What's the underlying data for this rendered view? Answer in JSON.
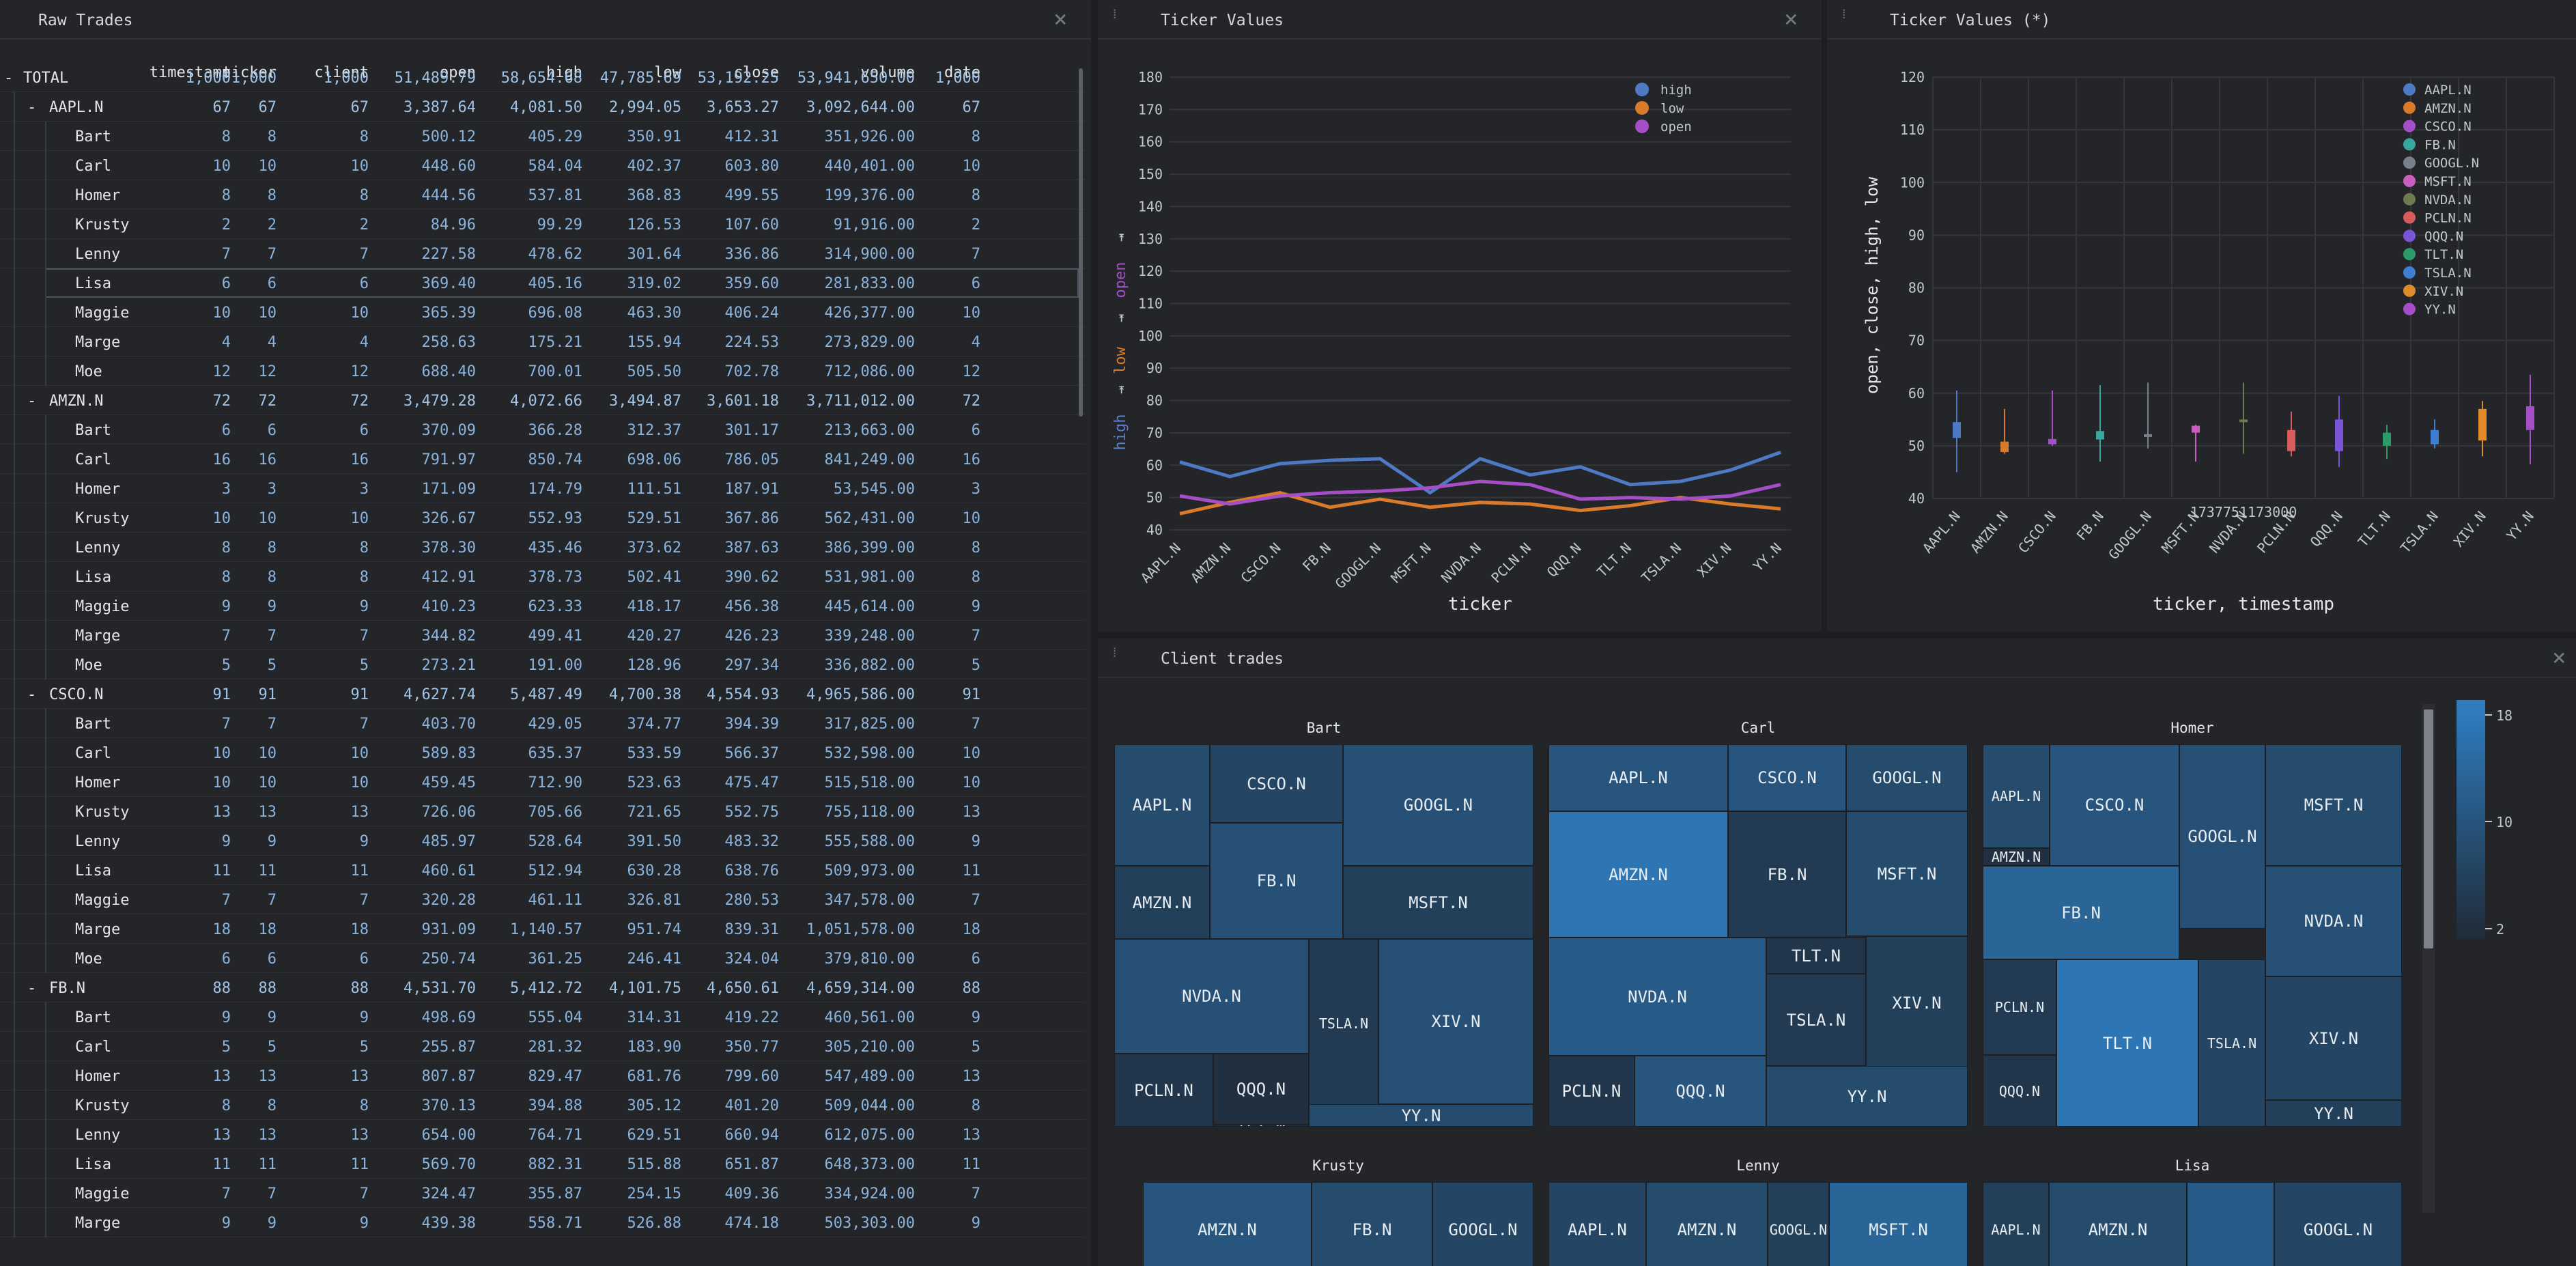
{
  "grid": {
    "title": "Raw Trades",
    "columns": [
      "timestamp",
      "ticker",
      "client",
      "open",
      "high",
      "low",
      "close",
      "volume",
      "date"
    ],
    "rows": [
      {
        "label": "TOTAL",
        "level": 0,
        "toggle": "-",
        "cells": [
          "1,000",
          "1,000",
          "1,000",
          "51,489.79",
          "58,654.68",
          "47,785.69",
          "53,192.25",
          "53,941,650.00",
          "1,000"
        ]
      },
      {
        "label": "AAPL.N",
        "level": 1,
        "toggle": "-",
        "cells": [
          "67",
          "67",
          "67",
          "3,387.64",
          "4,081.50",
          "2,994.05",
          "3,653.27",
          "3,092,644.00",
          "67"
        ]
      },
      {
        "label": "Bart",
        "level": 2,
        "cells": [
          "8",
          "8",
          "8",
          "500.12",
          "405.29",
          "350.91",
          "412.31",
          "351,926.00",
          "8"
        ]
      },
      {
        "label": "Carl",
        "level": 2,
        "cells": [
          "10",
          "10",
          "10",
          "448.60",
          "584.04",
          "402.37",
          "603.80",
          "440,401.00",
          "10"
        ]
      },
      {
        "label": "Homer",
        "level": 2,
        "cells": [
          "8",
          "8",
          "8",
          "444.56",
          "537.81",
          "368.83",
          "499.55",
          "199,376.00",
          "8"
        ]
      },
      {
        "label": "Krusty",
        "level": 2,
        "cells": [
          "2",
          "2",
          "2",
          "84.96",
          "99.29",
          "126.53",
          "107.60",
          "91,916.00",
          "2"
        ]
      },
      {
        "label": "Lenny",
        "level": 2,
        "cells": [
          "7",
          "7",
          "7",
          "227.58",
          "478.62",
          "301.64",
          "336.86",
          "314,900.00",
          "7"
        ]
      },
      {
        "label": "Lisa",
        "level": 2,
        "sel": true,
        "cells": [
          "6",
          "6",
          "6",
          "369.40",
          "405.16",
          "319.02",
          "359.60",
          "281,833.00",
          "6"
        ]
      },
      {
        "label": "Maggie",
        "level": 2,
        "cells": [
          "10",
          "10",
          "10",
          "365.39",
          "696.08",
          "463.30",
          "406.24",
          "426,377.00",
          "10"
        ]
      },
      {
        "label": "Marge",
        "level": 2,
        "cells": [
          "4",
          "4",
          "4",
          "258.63",
          "175.21",
          "155.94",
          "224.53",
          "273,829.00",
          "4"
        ]
      },
      {
        "label": "Moe",
        "level": 2,
        "cells": [
          "12",
          "12",
          "12",
          "688.40",
          "700.01",
          "505.50",
          "702.78",
          "712,086.00",
          "12"
        ]
      },
      {
        "label": "AMZN.N",
        "level": 1,
        "toggle": "-",
        "cells": [
          "72",
          "72",
          "72",
          "3,479.28",
          "4,072.66",
          "3,494.87",
          "3,601.18",
          "3,711,012.00",
          "72"
        ]
      },
      {
        "label": "Bart",
        "level": 2,
        "cells": [
          "6",
          "6",
          "6",
          "370.09",
          "366.28",
          "312.37",
          "301.17",
          "213,663.00",
          "6"
        ]
      },
      {
        "label": "Carl",
        "level": 2,
        "cells": [
          "16",
          "16",
          "16",
          "791.97",
          "850.74",
          "698.06",
          "786.05",
          "841,249.00",
          "16"
        ]
      },
      {
        "label": "Homer",
        "level": 2,
        "cells": [
          "3",
          "3",
          "3",
          "171.09",
          "174.79",
          "111.51",
          "187.91",
          "53,545.00",
          "3"
        ]
      },
      {
        "label": "Krusty",
        "level": 2,
        "cells": [
          "10",
          "10",
          "10",
          "326.67",
          "552.93",
          "529.51",
          "367.86",
          "562,431.00",
          "10"
        ]
      },
      {
        "label": "Lenny",
        "level": 2,
        "cells": [
          "8",
          "8",
          "8",
          "378.30",
          "435.46",
          "373.62",
          "387.63",
          "386,399.00",
          "8"
        ]
      },
      {
        "label": "Lisa",
        "level": 2,
        "cells": [
          "8",
          "8",
          "8",
          "412.91",
          "378.73",
          "502.41",
          "390.62",
          "531,981.00",
          "8"
        ]
      },
      {
        "label": "Maggie",
        "level": 2,
        "cells": [
          "9",
          "9",
          "9",
          "410.23",
          "623.33",
          "418.17",
          "456.38",
          "445,614.00",
          "9"
        ]
      },
      {
        "label": "Marge",
        "level": 2,
        "cells": [
          "7",
          "7",
          "7",
          "344.82",
          "499.41",
          "420.27",
          "426.23",
          "339,248.00",
          "7"
        ]
      },
      {
        "label": "Moe",
        "level": 2,
        "cells": [
          "5",
          "5",
          "5",
          "273.21",
          "191.00",
          "128.96",
          "297.34",
          "336,882.00",
          "5"
        ]
      },
      {
        "label": "CSCO.N",
        "level": 1,
        "toggle": "-",
        "cells": [
          "91",
          "91",
          "91",
          "4,627.74",
          "5,487.49",
          "4,700.38",
          "4,554.93",
          "4,965,586.00",
          "91"
        ]
      },
      {
        "label": "Bart",
        "level": 2,
        "cells": [
          "7",
          "7",
          "7",
          "403.70",
          "429.05",
          "374.77",
          "394.39",
          "317,825.00",
          "7"
        ]
      },
      {
        "label": "Carl",
        "level": 2,
        "cells": [
          "10",
          "10",
          "10",
          "589.83",
          "635.37",
          "533.59",
          "566.37",
          "532,598.00",
          "10"
        ]
      },
      {
        "label": "Homer",
        "level": 2,
        "cells": [
          "10",
          "10",
          "10",
          "459.45",
          "712.90",
          "523.63",
          "475.47",
          "515,518.00",
          "10"
        ]
      },
      {
        "label": "Krusty",
        "level": 2,
        "cells": [
          "13",
          "13",
          "13",
          "726.06",
          "705.66",
          "721.65",
          "552.75",
          "755,118.00",
          "13"
        ]
      },
      {
        "label": "Lenny",
        "level": 2,
        "cells": [
          "9",
          "9",
          "9",
          "485.97",
          "528.64",
          "391.50",
          "483.32",
          "555,588.00",
          "9"
        ]
      },
      {
        "label": "Lisa",
        "level": 2,
        "cells": [
          "11",
          "11",
          "11",
          "460.61",
          "512.94",
          "630.28",
          "638.76",
          "509,973.00",
          "11"
        ]
      },
      {
        "label": "Maggie",
        "level": 2,
        "cells": [
          "7",
          "7",
          "7",
          "320.28",
          "461.11",
          "326.81",
          "280.53",
          "347,578.00",
          "7"
        ]
      },
      {
        "label": "Marge",
        "level": 2,
        "cells": [
          "18",
          "18",
          "18",
          "931.09",
          "1,140.57",
          "951.74",
          "839.31",
          "1,051,578.00",
          "18"
        ]
      },
      {
        "label": "Moe",
        "level": 2,
        "cells": [
          "6",
          "6",
          "6",
          "250.74",
          "361.25",
          "246.41",
          "324.04",
          "379,810.00",
          "6"
        ]
      },
      {
        "label": "FB.N",
        "level": 1,
        "toggle": "-",
        "cells": [
          "88",
          "88",
          "88",
          "4,531.70",
          "5,412.72",
          "4,101.75",
          "4,650.61",
          "4,659,314.00",
          "88"
        ]
      },
      {
        "label": "Bart",
        "level": 2,
        "cells": [
          "9",
          "9",
          "9",
          "498.69",
          "555.04",
          "314.31",
          "419.22",
          "460,561.00",
          "9"
        ]
      },
      {
        "label": "Carl",
        "level": 2,
        "cells": [
          "5",
          "5",
          "5",
          "255.87",
          "281.32",
          "183.90",
          "350.77",
          "305,210.00",
          "5"
        ]
      },
      {
        "label": "Homer",
        "level": 2,
        "cells": [
          "13",
          "13",
          "13",
          "807.87",
          "829.47",
          "681.76",
          "799.60",
          "547,489.00",
          "13"
        ]
      },
      {
        "label": "Krusty",
        "level": 2,
        "cells": [
          "8",
          "8",
          "8",
          "370.13",
          "394.88",
          "305.12",
          "401.20",
          "509,044.00",
          "8"
        ]
      },
      {
        "label": "Lenny",
        "level": 2,
        "cells": [
          "13",
          "13",
          "13",
          "654.00",
          "764.71",
          "629.51",
          "660.94",
          "612,075.00",
          "13"
        ]
      },
      {
        "label": "Lisa",
        "level": 2,
        "cells": [
          "11",
          "11",
          "11",
          "569.70",
          "882.31",
          "515.88",
          "651.87",
          "648,373.00",
          "11"
        ]
      },
      {
        "label": "Maggie",
        "level": 2,
        "cells": [
          "7",
          "7",
          "7",
          "324.47",
          "355.87",
          "254.15",
          "409.36",
          "334,924.00",
          "7"
        ]
      },
      {
        "label": "Marge",
        "level": 2,
        "cells": [
          "9",
          "9",
          "9",
          "439.38",
          "558.71",
          "526.88",
          "474.18",
          "503,303.00",
          "9"
        ]
      }
    ]
  },
  "line_panel": {
    "title": "Ticker Values"
  },
  "candle_panel": {
    "title": "Ticker Values (*)"
  },
  "treemap_panel": {
    "title": "Client trades"
  },
  "chart_data": [
    {
      "type": "line",
      "categories": [
        "AAPL.N",
        "AMZN.N",
        "CSCO.N",
        "FB.N",
        "GOOGL.N",
        "MSFT.N",
        "NVDA.N",
        "PCLN.N",
        "QQQ.N",
        "TLT.N",
        "TSLA.N",
        "XIV.N",
        "YY.N"
      ],
      "series": [
        {
          "name": "high",
          "color": "#4e79c4",
          "values": [
            61,
            56.5,
            60.5,
            61.5,
            62,
            51.5,
            62,
            57,
            59.5,
            54,
            55,
            58.5,
            64
          ]
        },
        {
          "name": "low",
          "color": "#d97b2a",
          "values": [
            45,
            48.5,
            51.5,
            47,
            49.5,
            47,
            48.5,
            48,
            46,
            47.5,
            50,
            48,
            46.5
          ]
        },
        {
          "name": "open",
          "color": "#a44fc7",
          "values": [
            50.5,
            48,
            50.5,
            51.5,
            52,
            53,
            55,
            54,
            49.5,
            50,
            49.5,
            50.5,
            54
          ]
        }
      ],
      "xlabel": "ticker",
      "ylabel_parts": [
        "high",
        "low",
        "open"
      ],
      "ylim": [
        40,
        180
      ],
      "yticks": [
        40,
        50,
        60,
        70,
        80,
        90,
        100,
        110,
        120,
        130,
        140,
        150,
        160,
        170,
        180
      ],
      "legend_position": "top-right"
    },
    {
      "type": "candlestick",
      "categories": [
        "AAPL.N",
        "AMZN.N",
        "CSCO.N",
        "FB.N",
        "GOOGL.N",
        "MSFT.N",
        "NVDA.N",
        "PCLN.N",
        "QQQ.N",
        "TLT.N",
        "TSLA.N",
        "XIV.N",
        "YY.N"
      ],
      "colors": [
        "#4e79c4",
        "#d97b2a",
        "#a44fc7",
        "#3aa6a0",
        "#7a7f8c",
        "#c85fc0",
        "#6f7a4e",
        "#d85c5c",
        "#7b55d8",
        "#2e9a6a",
        "#3e7fd4",
        "#e08c2a",
        "#a44fc7"
      ],
      "open": [
        51.5,
        48.8,
        50.3,
        51.2,
        51.8,
        52.5,
        54.5,
        53.0,
        49.0,
        50.0,
        50.3,
        51.0,
        53.0
      ],
      "close": [
        54.5,
        50.8,
        51.3,
        52.8,
        52.2,
        53.8,
        55.0,
        49.0,
        55.0,
        52.5,
        53.0,
        57.0,
        57.5
      ],
      "high": [
        60.5,
        57.0,
        60.5,
        61.5,
        62.0,
        54.0,
        62.0,
        56.5,
        59.5,
        54.0,
        55.0,
        58.5,
        63.5
      ],
      "low": [
        45.0,
        48.5,
        50.0,
        47.0,
        49.5,
        47.0,
        48.5,
        48.0,
        46.0,
        47.5,
        49.5,
        48.0,
        46.5
      ],
      "xlabel": "ticker, timestamp",
      "group_label": "1737751173000",
      "ylabel": "open, close, high, low",
      "ylim": [
        40,
        120
      ],
      "yticks": [
        40,
        50,
        60,
        70,
        80,
        90,
        100,
        110,
        120
      ],
      "legend": [
        "AAPL.N",
        "AMZN.N",
        "CSCO.N",
        "FB.N",
        "GOOGL.N",
        "MSFT.N",
        "NVDA.N",
        "PCLN.N",
        "QQQ.N",
        "TLT.N",
        "TSLA.N",
        "XIV.N",
        "YY.N"
      ],
      "legend_position": "top-right"
    },
    {
      "type": "treemap",
      "color_scale": {
        "min": 2,
        "max": 18,
        "ticks": [
          "18",
          "10",
          "2"
        ],
        "low_color": "#1f2b38",
        "high_color": "#2f7fc4"
      },
      "groups": [
        {
          "name": "Bart",
          "tiles": [
            {
              "label": "AAPL.N",
              "value": 8
            },
            {
              "label": "CSCO.N",
              "value": 7
            },
            {
              "label": "GOOGL.N",
              "value": 9
            },
            {
              "label": "AMZN.N",
              "value": 6
            },
            {
              "label": "FB.N",
              "value": 9
            },
            {
              "label": "MSFT.N",
              "value": 6
            },
            {
              "label": "NVDA.N",
              "value": 9
            },
            {
              "label": "TSLA.N",
              "value": 5
            },
            {
              "label": "XIV.N",
              "value": 9
            },
            {
              "label": "PCLN.N",
              "value": 4
            },
            {
              "label": "QQQ.N",
              "value": 3
            },
            {
              "label": "YY.N",
              "value": 8
            },
            {
              "label": "TLT.N",
              "value": 3
            }
          ]
        },
        {
          "name": "Carl",
          "tiles": [
            {
              "label": "AAPL.N",
              "value": 10
            },
            {
              "label": "CSCO.N",
              "value": 10
            },
            {
              "label": "GOOGL.N",
              "value": 8
            },
            {
              "label": "AMZN.N",
              "value": 16
            },
            {
              "label": "FB.N",
              "value": 5
            },
            {
              "label": "MSFT.N",
              "value": 8
            },
            {
              "label": "NVDA.N",
              "value": 11
            },
            {
              "label": "TLT.N",
              "value": 4
            },
            {
              "label": "XIV.N",
              "value": 6
            },
            {
              "label": "TSLA.N",
              "value": 5
            },
            {
              "label": "PCLN.N",
              "value": 4
            },
            {
              "label": "QQQ.N",
              "value": 10
            },
            {
              "label": "YY.N",
              "value": 8
            }
          ]
        },
        {
          "name": "Homer",
          "tiles": [
            {
              "label": "AAPL.N",
              "value": 8
            },
            {
              "label": "CSCO.N",
              "value": 10
            },
            {
              "label": "GOOGL.N",
              "value": 9
            },
            {
              "label": "MSFT.N",
              "value": 8
            },
            {
              "label": "AMZN.N",
              "value": 3
            },
            {
              "label": "FB.N",
              "value": 13
            },
            {
              "label": "NVDA.N",
              "value": 9
            },
            {
              "label": "PCLN.N",
              "value": 5
            },
            {
              "label": "TLT.N",
              "value": 16
            },
            {
              "label": "TSLA.N",
              "value": 7
            },
            {
              "label": "XIV.N",
              "value": 7
            },
            {
              "label": "QQQ.N",
              "value": 4
            },
            {
              "label": "YY.N",
              "value": 6
            }
          ]
        },
        {
          "name": "Krusty",
          "tiles": [
            {
              "label": "AMZN.N",
              "value": 10
            },
            {
              "label": "FB.N",
              "value": 8
            },
            {
              "label": "GOOGL.N",
              "value": 7
            }
          ]
        },
        {
          "name": "Lenny",
          "tiles": [
            {
              "label": "AAPL.N",
              "value": 7
            },
            {
              "label": "AMZN.N",
              "value": 8
            },
            {
              "label": "GOOGL.N",
              "value": 6
            },
            {
              "label": "MSFT.N",
              "value": 13
            }
          ]
        },
        {
          "name": "Lisa",
          "tiles": [
            {
              "label": "AAPL.N",
              "value": 6
            },
            {
              "label": "AMZN.N",
              "value": 8
            },
            {
              "label": "",
              "value": 11
            },
            {
              "label": "GOOGL.N",
              "value": 7
            }
          ]
        }
      ]
    }
  ]
}
